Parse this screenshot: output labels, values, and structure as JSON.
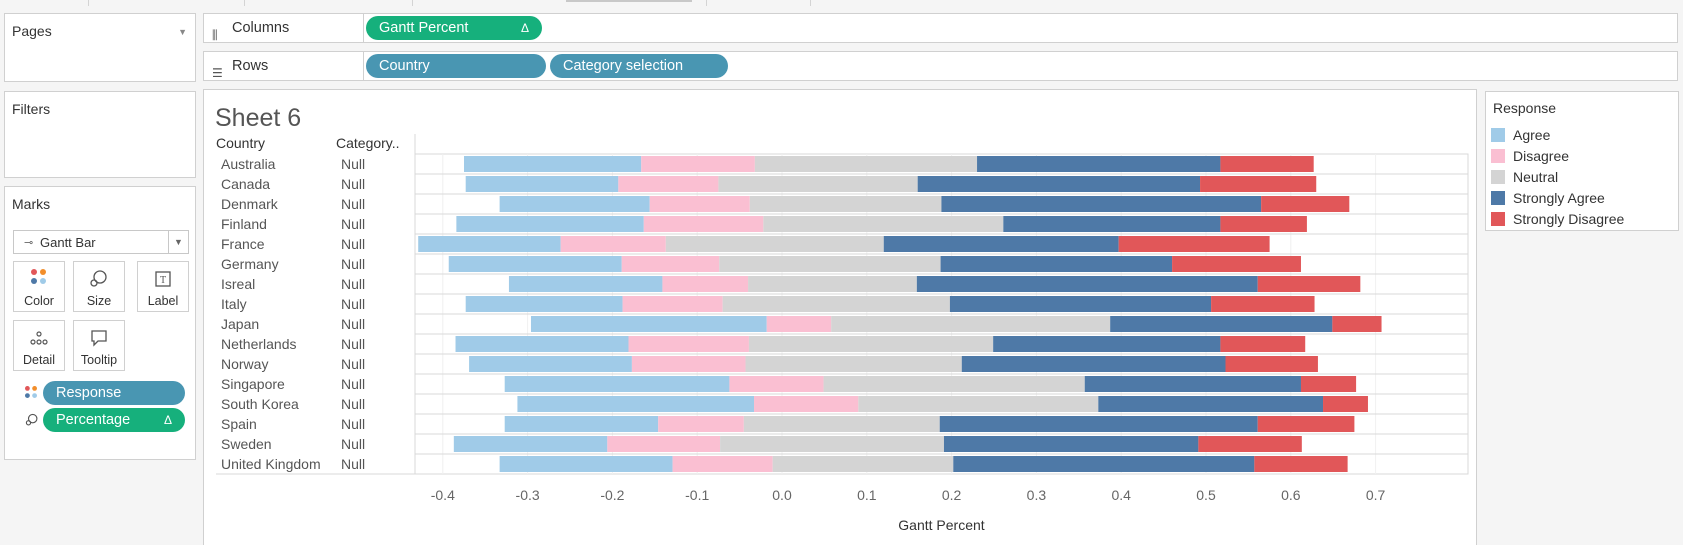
{
  "pages": {
    "title": "Pages"
  },
  "filters": {
    "title": "Filters"
  },
  "marks": {
    "title": "Marks",
    "mark_type": "Gantt Bar",
    "buttons": {
      "color": "Color",
      "size": "Size",
      "label": "Label",
      "detail": "Detail",
      "tooltip": "Tooltip"
    },
    "fields": [
      {
        "label": "Response",
        "kind": "color",
        "delta": ""
      },
      {
        "label": "Percentage",
        "kind": "size",
        "delta": "Δ"
      }
    ]
  },
  "shelves": {
    "columns": {
      "label": "Columns",
      "pills": [
        {
          "label": "Gantt Percent",
          "delta": "Δ"
        }
      ]
    },
    "rows": {
      "label": "Rows",
      "pills": [
        {
          "label": "Country"
        },
        {
          "label": "Category selection"
        }
      ]
    }
  },
  "sheet": {
    "title": "Sheet 6"
  },
  "legend": {
    "title": "Response",
    "items": [
      {
        "label": "Agree",
        "color": "#a0cbe8"
      },
      {
        "label": "Disagree",
        "color": "#fabfd2"
      },
      {
        "label": "Neutral",
        "color": "#d4d4d4"
      },
      {
        "label": "Strongly Agree",
        "color": "#4e79a7"
      },
      {
        "label": "Strongly Disagree",
        "color": "#e15759"
      }
    ]
  },
  "chart_data": {
    "type": "bar",
    "subtype": "diverging stacked gantt bar",
    "orientation": "horizontal",
    "row_headers": [
      "Country",
      "Category.."
    ],
    "xlabel": "Gantt Percent",
    "xlim": [
      -0.5,
      0.76
    ],
    "xticks": [
      -0.4,
      -0.3,
      -0.2,
      -0.1,
      0.0,
      0.1,
      0.2,
      0.3,
      0.4,
      0.5,
      0.6,
      0.7
    ],
    "xtick_labels": [
      "-0.4",
      "-0.3",
      "-0.2",
      "-0.1",
      "0.0",
      "0.1",
      "0.2",
      "0.3",
      "0.4",
      "0.5",
      "0.6",
      "0.7"
    ],
    "segment_order": [
      "Agree",
      "Disagree",
      "Neutral",
      "Strongly Agree",
      "Strongly Disagree"
    ],
    "rows": [
      {
        "country": "Australia",
        "category": "Null",
        "start": -0.375,
        "values": [
          0.209,
          0.134,
          0.262,
          0.287,
          0.11
        ]
      },
      {
        "country": "Canada",
        "category": "Null",
        "start": -0.373,
        "values": [
          0.18,
          0.118,
          0.235,
          0.333,
          0.137
        ]
      },
      {
        "country": "Denmark",
        "category": "Null",
        "start": -0.333,
        "values": [
          0.177,
          0.118,
          0.226,
          0.377,
          0.104
        ]
      },
      {
        "country": "Finland",
        "category": "Null",
        "start": -0.384,
        "values": [
          0.221,
          0.141,
          0.283,
          0.256,
          0.102
        ]
      },
      {
        "country": "France",
        "category": "Null",
        "start": -0.429,
        "values": [
          0.168,
          0.124,
          0.257,
          0.277,
          0.178
        ]
      },
      {
        "country": "Germany",
        "category": "Null",
        "start": -0.393,
        "values": [
          0.204,
          0.115,
          0.261,
          0.273,
          0.152
        ]
      },
      {
        "country": "Isreal",
        "category": "Null",
        "start": -0.322,
        "values": [
          0.181,
          0.101,
          0.199,
          0.402,
          0.121
        ]
      },
      {
        "country": "Italy",
        "category": "Null",
        "start": -0.373,
        "values": [
          0.185,
          0.118,
          0.268,
          0.308,
          0.122
        ]
      },
      {
        "country": "Japan",
        "category": "Null",
        "start": -0.296,
        "values": [
          0.278,
          0.076,
          0.329,
          0.262,
          0.058
        ]
      },
      {
        "country": "Netherlands",
        "category": "Null",
        "start": -0.385,
        "values": [
          0.204,
          0.142,
          0.288,
          0.268,
          0.1
        ]
      },
      {
        "country": "Norway",
        "category": "Null",
        "start": -0.369,
        "values": [
          0.192,
          0.134,
          0.255,
          0.311,
          0.109
        ]
      },
      {
        "country": "Singapore",
        "category": "Null",
        "start": -0.327,
        "values": [
          0.265,
          0.111,
          0.308,
          0.255,
          0.065
        ]
      },
      {
        "country": "South Korea",
        "category": "Null",
        "start": -0.312,
        "values": [
          0.279,
          0.123,
          0.283,
          0.265,
          0.053
        ]
      },
      {
        "country": "Spain",
        "category": "Null",
        "start": -0.327,
        "values": [
          0.181,
          0.101,
          0.231,
          0.375,
          0.114
        ]
      },
      {
        "country": "Sweden",
        "category": "Null",
        "start": -0.387,
        "values": [
          0.181,
          0.133,
          0.264,
          0.3,
          0.122
        ]
      },
      {
        "country": "United Kingdom",
        "category": "Null",
        "start": -0.333,
        "values": [
          0.204,
          0.118,
          0.213,
          0.355,
          0.11
        ]
      }
    ]
  }
}
